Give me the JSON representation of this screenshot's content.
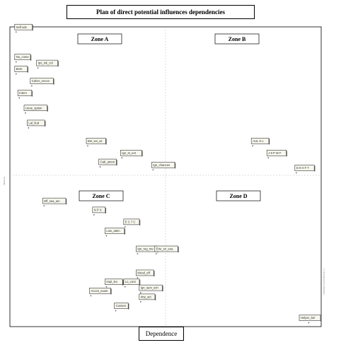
{
  "title": "Plan of direct potential influences dependencies",
  "xlabel": "Dependence",
  "ylabel": "Influence",
  "right_note": "© LIPSOR-EPITA-MICMAC",
  "zones": [
    "Zone A",
    "Zone B",
    "Zone C",
    "Zone D"
  ],
  "chart_data": {
    "type": "scatter",
    "title": "Plan of direct potential influences dependencies",
    "xlabel": "Dependence",
    "ylabel": "Influence",
    "quadrants": [
      "Zone A",
      "Zone B",
      "Zone C",
      "Zone D"
    ],
    "points": [
      {
        "label": "Self adv",
        "x": 0.02,
        "y": 0.99
      },
      {
        "label": "Nu_come",
        "x": 0.02,
        "y": 0.89
      },
      {
        "label": "Ipo_wk_col",
        "x": 0.09,
        "y": 0.87
      },
      {
        "label": "Bent",
        "x": 0.02,
        "y": 0.85
      },
      {
        "label": "Caher_encon",
        "x": 0.07,
        "y": 0.81
      },
      {
        "label": "Intern",
        "x": 0.03,
        "y": 0.77
      },
      {
        "label": "Unos_option",
        "x": 0.05,
        "y": 0.72
      },
      {
        "label": "Lal_Ilud",
        "x": 0.06,
        "y": 0.67
      },
      {
        "label": "Bet_wo_wr",
        "x": 0.25,
        "y": 0.61
      },
      {
        "label": "Cab_amon",
        "x": 0.29,
        "y": 0.54
      },
      {
        "label": "Ign_st_ent",
        "x": 0.36,
        "y": 0.57
      },
      {
        "label": "Ign_chances",
        "x": 0.46,
        "y": 0.53
      },
      {
        "label": "AUL G.I.",
        "x": 0.78,
        "y": 0.61
      },
      {
        "label": "J 9 P W F",
        "x": 0.83,
        "y": 0.57
      },
      {
        "label": "D 9 H F T",
        "x": 0.92,
        "y": 0.52
      },
      {
        "label": "Eff_sea_ien",
        "x": 0.11,
        "y": 0.41
      },
      {
        "label": "N P X",
        "x": 0.27,
        "y": 0.38
      },
      {
        "label": "E C 7 C",
        "x": 0.37,
        "y": 0.34
      },
      {
        "label": "Low_atten",
        "x": 0.31,
        "y": 0.31
      },
      {
        "label": "Ign_reg_me",
        "x": 0.41,
        "y": 0.25
      },
      {
        "label": "Erie_en_exa",
        "x": 0.47,
        "y": 0.25
      },
      {
        "label": "Mood_eff",
        "x": 0.41,
        "y": 0.17
      },
      {
        "label": "Impl_lex",
        "x": 0.31,
        "y": 0.14
      },
      {
        "label": "Lo_cont",
        "x": 0.37,
        "y": 0.14
      },
      {
        "label": "Ign_sum_sch",
        "x": 0.42,
        "y": 0.12
      },
      {
        "label": "Acces_exam",
        "x": 0.26,
        "y": 0.11
      },
      {
        "label": "Imp_act",
        "x": 0.42,
        "y": 0.09
      },
      {
        "label": "Consen",
        "x": 0.34,
        "y": 0.06
      },
      {
        "label": "Helper_bel",
        "x": 0.96,
        "y": 0.02
      }
    ]
  }
}
